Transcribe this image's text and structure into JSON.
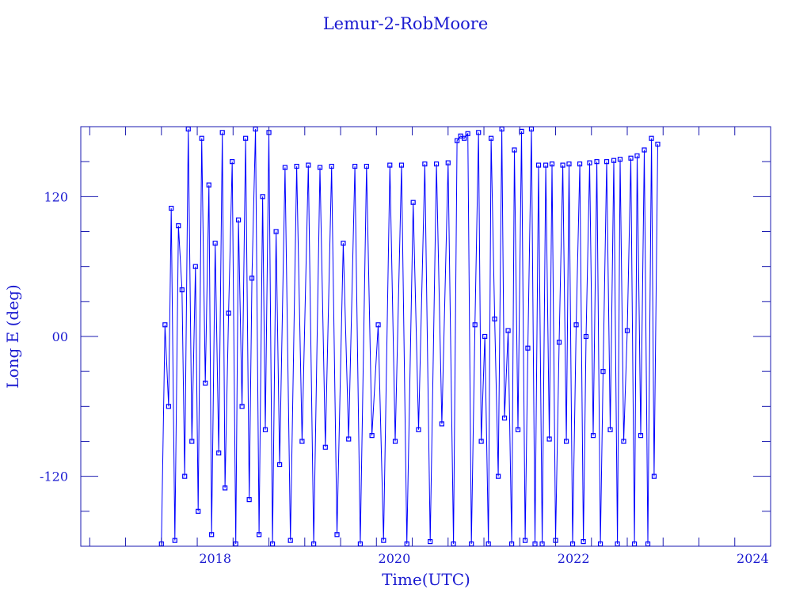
{
  "chart_data": {
    "type": "line",
    "title": "Lemur-2-RobMoore",
    "xlabel": "Time(UTC)",
    "ylabel": "Long E (deg)",
    "xlim": [
      2016.5,
      2024.2
    ],
    "ylim": [
      -180,
      180
    ],
    "x_tick_labels": [
      "2018",
      "2020",
      "2022",
      "2024"
    ],
    "x_ticks": [
      2018,
      2020,
      2022,
      2024
    ],
    "y_tick_labels": [
      "120",
      "00",
      "-120"
    ],
    "y_ticks": [
      120,
      0,
      -120
    ],
    "y_minor_step": 30,
    "grid": false,
    "markers": "square",
    "colors": {
      "series": "#0000ff",
      "axes": "#1a1ab0",
      "text": "#1a1ad0"
    },
    "series": [
      {
        "x": [
          2017.4,
          2017.44,
          2017.48,
          2017.51,
          2017.55,
          2017.59,
          2017.63,
          2017.66,
          2017.7,
          2017.74,
          2017.78,
          2017.81,
          2017.85,
          2017.89,
          2017.93,
          2017.96,
          2018.0,
          2018.04,
          2018.08,
          2018.11,
          2018.15,
          2018.19,
          2018.23,
          2018.26,
          2018.3,
          2018.34,
          2018.38,
          2018.41,
          2018.45,
          2018.49,
          2018.53,
          2018.56,
          2018.6,
          2018.64,
          2018.68,
          2018.72,
          2018.78,
          2018.84,
          2018.91,
          2018.97,
          2019.04,
          2019.1,
          2019.17,
          2019.23,
          2019.3,
          2019.36,
          2019.43,
          2019.49,
          2019.56,
          2019.62,
          2019.69,
          2019.75,
          2019.82,
          2019.88,
          2019.95,
          2020.01,
          2020.08,
          2020.14,
          2020.21,
          2020.27,
          2020.34,
          2020.4,
          2020.47,
          2020.53,
          2020.6,
          2020.66,
          2020.7,
          2020.74,
          2020.78,
          2020.82,
          2020.86,
          2020.9,
          2020.94,
          2020.97,
          2021.01,
          2021.05,
          2021.08,
          2021.12,
          2021.16,
          2021.2,
          2021.23,
          2021.27,
          2021.31,
          2021.34,
          2021.38,
          2021.42,
          2021.46,
          2021.49,
          2021.53,
          2021.57,
          2021.61,
          2021.65,
          2021.69,
          2021.73,
          2021.76,
          2021.8,
          2021.84,
          2021.88,
          2021.92,
          2021.95,
          2021.99,
          2022.03,
          2022.07,
          2022.11,
          2022.14,
          2022.18,
          2022.22,
          2022.26,
          2022.3,
          2022.33,
          2022.37,
          2022.41,
          2022.45,
          2022.49,
          2022.52,
          2022.56,
          2022.6,
          2022.64,
          2022.68,
          2022.71,
          2022.75,
          2022.79,
          2022.83,
          2022.87,
          2022.9,
          2022.94
        ],
        "y": [
          -178,
          10,
          -60,
          110,
          -175,
          95,
          40,
          -120,
          178,
          -90,
          60,
          -150,
          170,
          -40,
          130,
          -170,
          80,
          -100,
          175,
          -130,
          20,
          150,
          -178,
          100,
          -60,
          170,
          -140,
          50,
          178,
          -170,
          120,
          -80,
          175,
          -178,
          90,
          -110,
          145,
          -175,
          146,
          -90,
          147,
          -178,
          145,
          -95,
          146,
          -170,
          80,
          -88,
          146,
          -178,
          146,
          -85,
          10,
          -175,
          147,
          -90,
          147,
          -178,
          115,
          -80,
          148,
          -176,
          148,
          -75,
          149,
          -178,
          168,
          172,
          170,
          174,
          -178,
          10,
          175,
          -90,
          0,
          -178,
          170,
          15,
          -120,
          178,
          -70,
          5,
          -178,
          160,
          -80,
          176,
          -175,
          -10,
          178,
          -178,
          147,
          -178,
          147,
          -88,
          148,
          -175,
          -5,
          147,
          -90,
          148,
          -178,
          10,
          148,
          -176,
          0,
          149,
          -85,
          150,
          -178,
          -30,
          150,
          -80,
          151,
          -178,
          152,
          -90,
          5,
          153,
          -178,
          155,
          -85,
          160,
          -178,
          170,
          -120,
          165
        ]
      }
    ]
  }
}
